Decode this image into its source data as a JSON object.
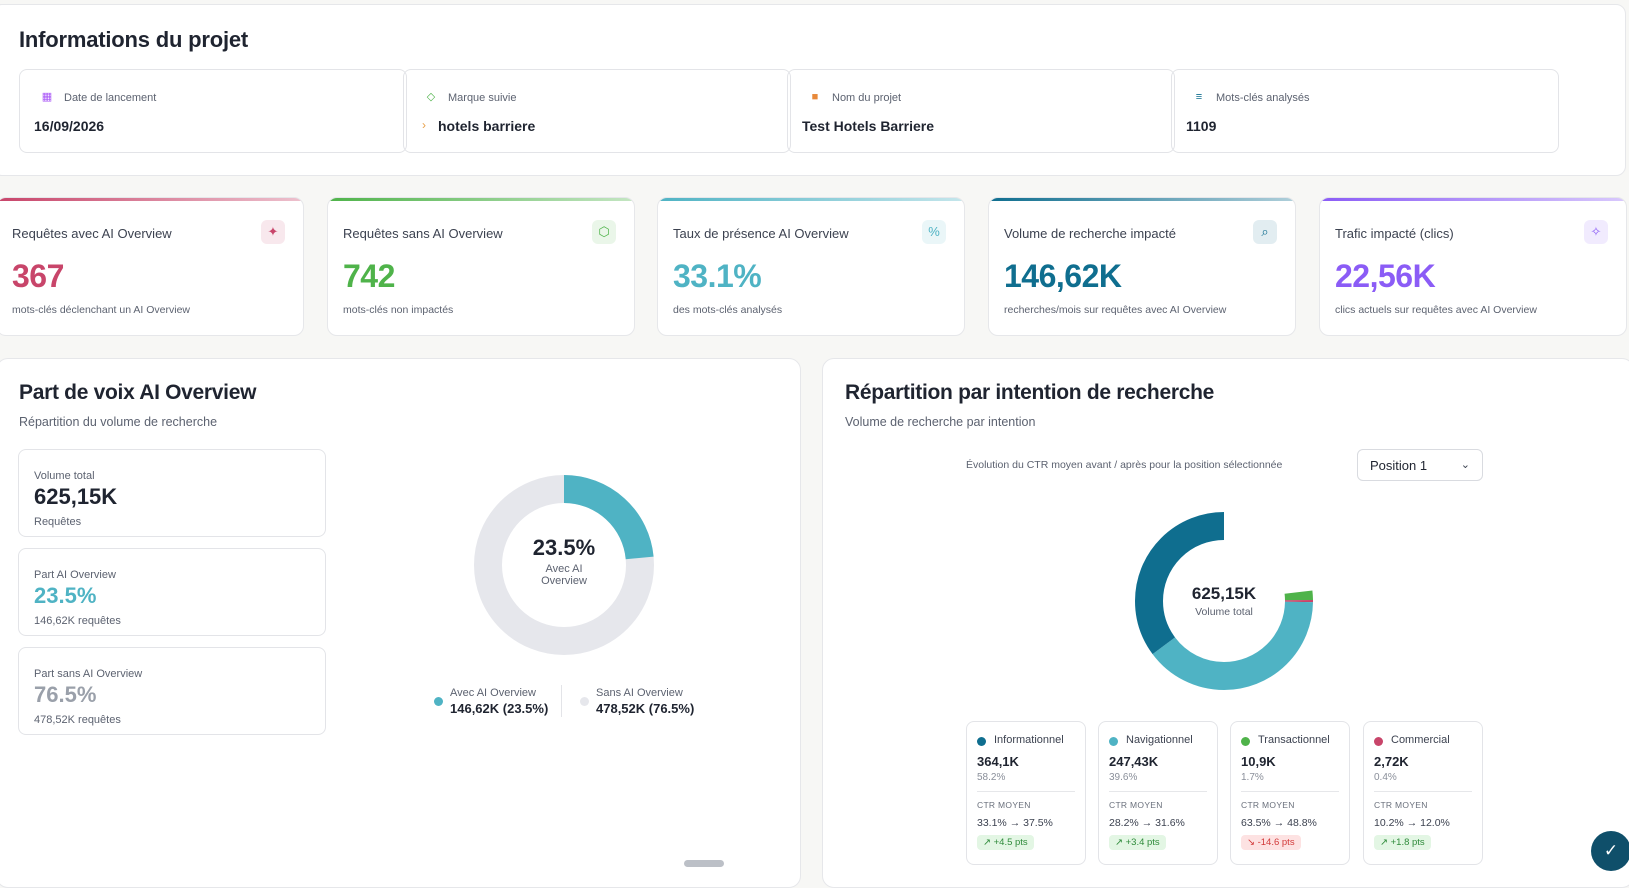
{
  "project": {
    "title": "Informations du projet",
    "fields": [
      {
        "label": "Date de lancement",
        "value": "16/09/2026",
        "icon": "calendar-icon"
      },
      {
        "label": "Marque suivie",
        "value": "hotels barriere",
        "icon": "tag-icon"
      },
      {
        "label": "Nom du projet",
        "value": "Test Hotels Barriere",
        "icon": "folder-icon"
      },
      {
        "label": "Mots-clés analysés",
        "value": "1109",
        "icon": "list-icon"
      }
    ]
  },
  "kpis": [
    {
      "label": "Requêtes avec AI Overview",
      "value": "367",
      "sub": "mots-clés déclenchant un AI Overview",
      "color": "#c8456a",
      "icon": "sparkle-icon"
    },
    {
      "label": "Requêtes sans AI Overview",
      "value": "742",
      "sub": "mots-clés non impactés",
      "color": "#4fb34a",
      "icon": "shield-icon"
    },
    {
      "label": "Taux de présence AI Overview",
      "value": "33.1%",
      "sub": "des mots-clés analysés",
      "color": "#4fb3c4",
      "icon": "percent-icon"
    },
    {
      "label": "Volume de recherche impacté",
      "value": "146,62K",
      "sub": "recherches/mois sur requêtes avec AI Overview",
      "color": "#0f6e8f",
      "icon": "search-icon"
    },
    {
      "label": "Trafic impacté (clics)",
      "value": "22,56K",
      "sub": "clics actuels sur requêtes avec AI Overview",
      "color": "#8b5cf6",
      "icon": "cursor-icon"
    }
  ],
  "share": {
    "title": "Part de voix AI Overview",
    "subtitle": "Répartition du volume de recherche",
    "boxes": [
      {
        "label": "Volume total",
        "value": "625,15K",
        "sub": "Requêtes"
      },
      {
        "label": "Part AI Overview",
        "value": "23.5%",
        "sub": "146,62K requêtes"
      },
      {
        "label": "Part sans AI Overview",
        "value": "76.5%",
        "sub": "478,52K requêtes"
      }
    ],
    "donut_center": "23.5%",
    "donut_caption": "Avec AI Overview",
    "legend": [
      {
        "label": "Avec AI Overview",
        "value": "146,62K (23.5%)"
      },
      {
        "label": "Sans AI Overview",
        "value": "478,52K (76.5%)"
      }
    ],
    "fraction_with": 0.235
  },
  "intent": {
    "title": "Répartition par intention de recherche",
    "subtitle": "Volume de recherche par intention",
    "ctr_note": "Évolution du CTR moyen avant / après pour la position sélectionnée",
    "select": "Position 1",
    "center_value": "625,15K",
    "center_caption": "Volume total",
    "items": [
      {
        "name": "Informationnel",
        "value": "364,1K",
        "pct": "58.2%",
        "fraction": 0.582,
        "color": "#0f6e8f",
        "ctr_label": "CTR MOYEN",
        "ctr_before": "33.1%",
        "ctr_after": "37.5%",
        "delta": "+4.5 pts",
        "trend": "up"
      },
      {
        "name": "Navigationnel",
        "value": "247,43K",
        "pct": "39.6%",
        "fraction": 0.396,
        "color": "#4fb3c4",
        "ctr_label": "CTR MOYEN",
        "ctr_before": "28.2%",
        "ctr_after": "31.6%",
        "delta": "+3.4 pts",
        "trend": "up"
      },
      {
        "name": "Transactionnel",
        "value": "10,9K",
        "pct": "1.7%",
        "fraction": 0.017,
        "color": "#4fb34a",
        "ctr_label": "CTR MOYEN",
        "ctr_before": "63.5%",
        "ctr_after": "48.8%",
        "delta": "-14.6 pts",
        "trend": "down"
      },
      {
        "name": "Commercial",
        "value": "2,72K",
        "pct": "0.4%",
        "fraction": 0.004,
        "color": "#c8456a",
        "ctr_label": "CTR MOYEN",
        "ctr_before": "10.2%",
        "ctr_after": "12.0%",
        "delta": "+1.8 pts",
        "trend": "up"
      }
    ]
  }
}
